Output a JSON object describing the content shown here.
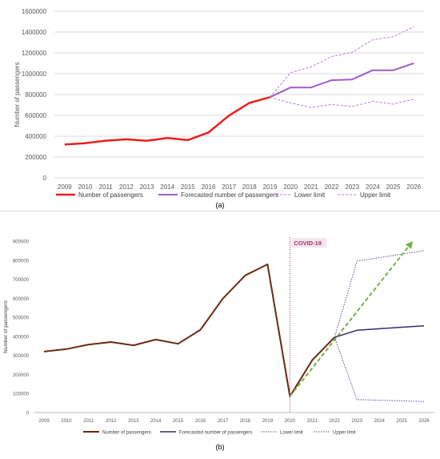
{
  "chart_data": [
    {
      "type": "line",
      "panel_label": "(a)",
      "ylabel": "Number of passengers",
      "ylim": [
        0,
        1600000
      ],
      "yticks": [
        "0",
        "200000",
        "400000",
        "600000",
        "800000",
        "1000000",
        "1200000",
        "1400000",
        "1600000"
      ],
      "x": [
        "2009",
        "2010",
        "2011",
        "2012",
        "2013",
        "2014",
        "2015",
        "2016",
        "2017",
        "2018",
        "2019",
        "2020",
        "2021",
        "2022",
        "2023",
        "2024",
        "2025",
        "2026"
      ],
      "grid": true,
      "legend_position": "bottom",
      "series": [
        {
          "name": "Number of passengers",
          "color": "#ee1c1c",
          "style": "solid",
          "width": 2.5,
          "values": [
            320000,
            333000,
            357000,
            370000,
            355000,
            382000,
            362000,
            435000,
            598000,
            720000,
            775000,
            null,
            null,
            null,
            null,
            null,
            null,
            null
          ]
        },
        {
          "name": "Forecasted number of passengers",
          "color": "#a45bc9",
          "style": "solid",
          "width": 2,
          "values": [
            null,
            null,
            null,
            null,
            null,
            null,
            null,
            null,
            null,
            null,
            775000,
            868000,
            868000,
            938000,
            945000,
            1033000,
            1033000,
            1100000
          ]
        },
        {
          "name": "Lower limit",
          "color": "#b57bd6",
          "style": "dashed",
          "width": 1,
          "values": [
            null,
            null,
            null,
            null,
            null,
            null,
            null,
            null,
            null,
            null,
            775000,
            720000,
            675000,
            705000,
            685000,
            735000,
            708000,
            755000
          ]
        },
        {
          "name": "Upper limit",
          "color": "#b57bd6",
          "style": "dashed",
          "width": 1,
          "values": [
            null,
            null,
            null,
            null,
            null,
            null,
            null,
            null,
            null,
            null,
            775000,
            1010000,
            1065000,
            1165000,
            1205000,
            1325000,
            1355000,
            1450000
          ]
        }
      ]
    },
    {
      "type": "line",
      "panel_label": "(b)",
      "ylabel": "Number of passengers",
      "ylim": [
        0,
        900000
      ],
      "yticks": [
        "0",
        "100000",
        "200000",
        "300000",
        "400000",
        "500000",
        "600000",
        "700000",
        "800000",
        "900000"
      ],
      "x": [
        "2009",
        "2010",
        "2011",
        "2012",
        "2013",
        "2014",
        "2015",
        "2016",
        "2017",
        "2018",
        "2019",
        "2020",
        "2021",
        "2022",
        "2023",
        "2024",
        "2025",
        "2026"
      ],
      "grid": false,
      "legend_position": "bottom",
      "annotation": {
        "text": "COVID-19",
        "x": "2020",
        "color": "#a8326e"
      },
      "series": [
        {
          "name": "Number of passengers",
          "color": "#6b2a0f",
          "style": "solid",
          "width": 2,
          "values": [
            320000,
            333000,
            357000,
            370000,
            353000,
            383000,
            361000,
            435000,
            598000,
            720000,
            778000,
            85000,
            275000,
            395000,
            null,
            null,
            null,
            null
          ]
        },
        {
          "name": "Forecasted number of passengers",
          "color": "#3b2a6b",
          "style": "solid",
          "width": 1.5,
          "values": [
            null,
            null,
            null,
            null,
            null,
            null,
            null,
            null,
            null,
            null,
            null,
            null,
            null,
            395000,
            432000,
            440000,
            448000,
            455000
          ]
        },
        {
          "name": "Lower limit",
          "color": "#4a5a8a",
          "style": "dotted",
          "width": 1,
          "values": [
            null,
            null,
            null,
            null,
            null,
            null,
            null,
            null,
            null,
            null,
            null,
            null,
            null,
            395000,
            68000,
            null,
            null,
            58000
          ]
        },
        {
          "name": "Upper limit",
          "color": "#4a5a8a",
          "style": "dotted",
          "width": 1,
          "values": [
            null,
            null,
            null,
            null,
            null,
            null,
            null,
            null,
            null,
            null,
            null,
            null,
            null,
            395000,
            795000,
            null,
            null,
            850000
          ]
        }
      ],
      "trend_arrow": {
        "color": "#72b043",
        "from": {
          "x": "2020",
          "y": 85000
        },
        "to": {
          "x": "2025.5",
          "y": 900000
        }
      }
    }
  ]
}
